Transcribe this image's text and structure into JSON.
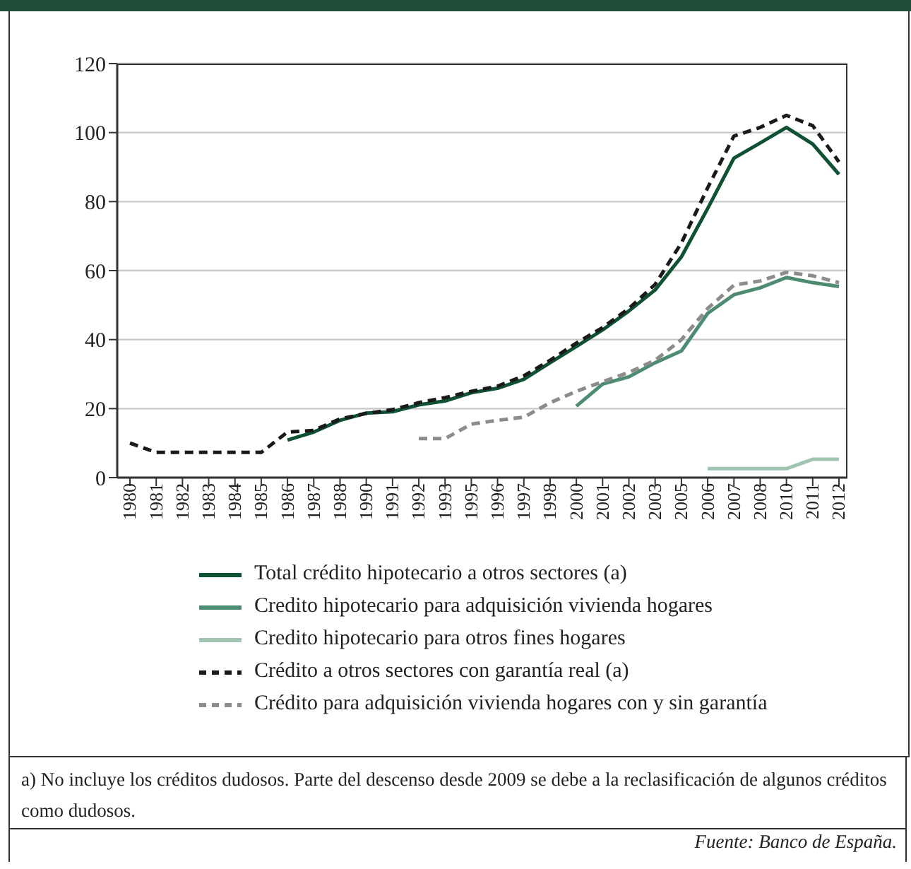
{
  "chart_data": {
    "type": "line",
    "categories": [
      "1980",
      "1981",
      "1982",
      "1983",
      "1984",
      "1985",
      "1986",
      "1987",
      "1988",
      "1990",
      "1991",
      "1992",
      "1993",
      "1995",
      "1996",
      "1997",
      "1998",
      "2000",
      "2001",
      "2002",
      "2003",
      "2005",
      "2006",
      "2007",
      "2008",
      "2010",
      "2011",
      "2012"
    ],
    "series": [
      {
        "name": "Total crédito hipotecario a otros sectores (a)",
        "color": "#0e5233",
        "line_style": "solid",
        "values": [
          null,
          null,
          null,
          null,
          null,
          null,
          10.9,
          13.2,
          16.6,
          18.7,
          19.1,
          21.1,
          22.2,
          24.6,
          25.9,
          28.5,
          33.3,
          38,
          42.8,
          48.3,
          54.4,
          64,
          78,
          92.6,
          97,
          101.5,
          96.7,
          87.9
        ]
      },
      {
        "name": "Credito hipotecario para adquisición vivienda hogares",
        "color": "#4e8c72",
        "line_style": "solid",
        "values": [
          null,
          null,
          null,
          null,
          null,
          null,
          null,
          null,
          null,
          null,
          null,
          null,
          null,
          null,
          null,
          null,
          null,
          20.7,
          27.1,
          29.2,
          33.3,
          36.7,
          47.6,
          53,
          55,
          58,
          56.5,
          55.4
        ]
      },
      {
        "name": "Credito hipotecario para otros fines hogares",
        "color": "#9fc4b2",
        "line_style": "solid",
        "values": [
          null,
          null,
          null,
          null,
          null,
          null,
          null,
          null,
          null,
          null,
          null,
          null,
          null,
          null,
          null,
          null,
          null,
          null,
          null,
          null,
          null,
          null,
          2.6,
          2.6,
          2.6,
          2.6,
          5.3,
          5.3
        ]
      },
      {
        "name": "Crédito a otros sectores con garantía real (a)",
        "color": "#1a1a1a",
        "line_style": "dashed",
        "values": [
          10,
          7.3,
          7.3,
          7.3,
          7.3,
          7.3,
          13.2,
          13.7,
          17,
          18.6,
          19.7,
          21.7,
          23.2,
          25,
          26.5,
          29.5,
          34,
          39,
          43.5,
          49,
          56,
          68,
          84,
          99,
          101.5,
          105,
          102,
          91.5
        ]
      },
      {
        "name": "Crédito para adquisición vivienda hogares con y sin garantía",
        "color": "#8c8c8c",
        "line_style": "dashed",
        "values": [
          null,
          null,
          null,
          null,
          null,
          null,
          null,
          null,
          null,
          null,
          null,
          11.3,
          11.3,
          15.5,
          16.6,
          17.5,
          21.7,
          25,
          27.8,
          30.5,
          34,
          40,
          49,
          55.8,
          57,
          59.5,
          58.5,
          56.5
        ]
      }
    ],
    "ylim": [
      0,
      120
    ],
    "yticks": [
      0,
      20,
      40,
      60,
      80,
      100,
      120
    ],
    "grid": "y",
    "legend": "bottom",
    "marker": "none",
    "annotations": [
      "a) No incluye los créditos dudosos. Parte del descenso desde 2009 se debe a la reclasificación de algunos créditos como dudosos.",
      "Fuente: Banco de España."
    ]
  }
}
